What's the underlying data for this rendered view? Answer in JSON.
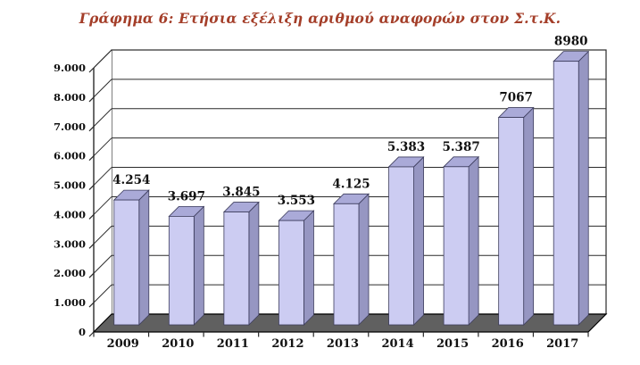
{
  "chart_data": {
    "type": "bar",
    "style": "3d-column",
    "title": "Γράφημα 6: Ετήσια εξέλιξη αριθμού αναφορών στον Σ.τ.Κ.",
    "categories": [
      "2009",
      "2010",
      "2011",
      "2012",
      "2013",
      "2014",
      "2015",
      "2016",
      "2017"
    ],
    "values": [
      4254,
      3697,
      3845,
      3553,
      4125,
      5383,
      5387,
      7067,
      8980
    ],
    "value_labels": [
      "4.254",
      "3.697",
      "3.845",
      "3.553",
      "4.125",
      "5.383",
      "5.387",
      "7067",
      "8980"
    ],
    "ylim": [
      0,
      9000
    ],
    "ytick_step": 1000,
    "ytick_labels": [
      "0",
      "1.000",
      "2.000",
      "3.000",
      "4.000",
      "5.000",
      "6.000",
      "7.000",
      "8.000",
      "9.000"
    ],
    "xlabel": "",
    "ylabel": "",
    "grid": true,
    "legend": "none",
    "colors": {
      "title": "#a43e29",
      "bar_front": "#ccccf2",
      "bar_side": "#9696c2",
      "bar_top": "#aaaad8",
      "bar_outline": "#3c3c5c",
      "floor": "#606060",
      "wall_fill": "#ffffff",
      "line": "#2a2a2a",
      "text": "#111111",
      "background": "#ffffff"
    }
  }
}
